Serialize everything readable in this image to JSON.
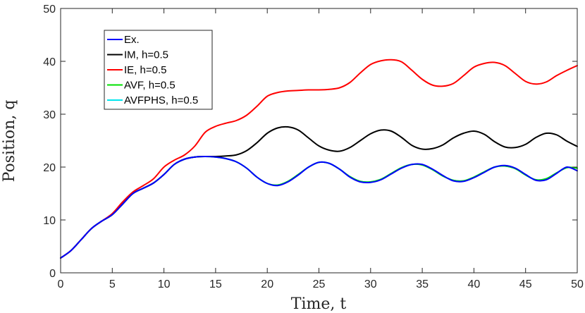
{
  "chart_data": {
    "type": "line",
    "title": "",
    "xlabel": "Time, t",
    "ylabel": "Position, q",
    "xlim": [
      0,
      50
    ],
    "ylim": [
      0,
      50
    ],
    "xticks": [
      "0",
      "5",
      "10",
      "15",
      "20",
      "25",
      "30",
      "35",
      "40",
      "45",
      "50"
    ],
    "yticks": [
      "0",
      "10",
      "20",
      "30",
      "40",
      "50"
    ],
    "grid": false,
    "legend_position": "top-left",
    "series": [
      {
        "name": "Ex.",
        "color": "#0000ff",
        "x": [
          0,
          1,
          2,
          3,
          4,
          5,
          6,
          7,
          8,
          9,
          10,
          11,
          12,
          13,
          14,
          15,
          16,
          17,
          18,
          19,
          20,
          21,
          22,
          23,
          24,
          25,
          26,
          27,
          28,
          29,
          30,
          31,
          32,
          33,
          34,
          35,
          36,
          37,
          38,
          39,
          40,
          41,
          42,
          43,
          44,
          45,
          46,
          47,
          48,
          49,
          50
        ],
        "y": [
          2.8,
          4.2,
          6.3,
          8.4,
          9.8,
          11.0,
          13.0,
          15.0,
          16.0,
          17.0,
          18.6,
          20.5,
          21.5,
          21.9,
          22.0,
          21.9,
          21.6,
          21.0,
          19.8,
          18.1,
          16.9,
          16.5,
          17.2,
          18.5,
          20.0,
          20.9,
          20.7,
          19.6,
          18.1,
          17.2,
          17.1,
          17.6,
          18.7,
          19.8,
          20.5,
          20.5,
          19.6,
          18.4,
          17.4,
          17.3,
          18.0,
          19.0,
          20.0,
          20.3,
          19.8,
          18.6,
          17.5,
          17.6,
          18.8,
          20.0,
          19.3
        ]
      },
      {
        "name": "IM, h=0.5",
        "color": "#000000",
        "x": [
          0,
          1,
          2,
          3,
          4,
          5,
          6,
          7,
          8,
          9,
          10,
          11,
          12,
          13,
          14,
          15,
          16,
          17,
          18,
          19,
          20,
          21,
          22,
          23,
          24,
          25,
          26,
          27,
          28,
          29,
          30,
          31,
          32,
          33,
          34,
          35,
          36,
          37,
          38,
          39,
          40,
          41,
          42,
          43,
          44,
          45,
          46,
          47,
          48,
          49,
          50
        ],
        "y": [
          2.8,
          4.2,
          6.3,
          8.4,
          9.8,
          11.0,
          13.0,
          15.0,
          16.0,
          17.0,
          18.6,
          20.5,
          21.5,
          21.9,
          22.0,
          22.0,
          22.1,
          22.3,
          23.1,
          24.6,
          26.4,
          27.4,
          27.6,
          27.0,
          25.5,
          24.0,
          23.2,
          23.0,
          23.7,
          25.0,
          26.3,
          27.0,
          26.8,
          25.6,
          24.1,
          23.4,
          23.5,
          24.2,
          25.5,
          26.4,
          26.8,
          26.2,
          24.8,
          23.8,
          23.7,
          24.3,
          25.6,
          26.4,
          26.1,
          24.9,
          23.9
        ]
      },
      {
        "name": "IE, h=0.5",
        "color": "#ff0000",
        "x": [
          0,
          1,
          2,
          3,
          4,
          5,
          6,
          7,
          8,
          9,
          10,
          11,
          12,
          13,
          14,
          15,
          16,
          17,
          18,
          19,
          20,
          21,
          22,
          23,
          24,
          25,
          26,
          27,
          28,
          29,
          30,
          31,
          32,
          33,
          34,
          35,
          36,
          37,
          38,
          39,
          40,
          41,
          42,
          43,
          44,
          45,
          46,
          47,
          48,
          49,
          50
        ],
        "y": [
          2.8,
          4.2,
          6.3,
          8.4,
          9.8,
          11.2,
          13.4,
          15.3,
          16.5,
          17.8,
          20.0,
          21.3,
          22.3,
          24.0,
          26.6,
          27.7,
          28.3,
          28.8,
          29.8,
          31.5,
          33.4,
          34.1,
          34.4,
          34.5,
          34.6,
          34.6,
          34.7,
          35.0,
          36.0,
          37.8,
          39.4,
          40.1,
          40.3,
          39.9,
          38.3,
          36.6,
          35.5,
          35.3,
          35.8,
          37.3,
          38.9,
          39.6,
          39.8,
          39.2,
          37.7,
          36.2,
          35.7,
          36.1,
          37.3,
          38.3,
          39.2
        ]
      },
      {
        "name": "AVF, h=0.5",
        "color": "#00e000",
        "x": [
          0,
          1,
          2,
          3,
          4,
          5,
          6,
          7,
          8,
          9,
          10,
          11,
          12,
          13,
          14,
          15,
          16,
          17,
          18,
          19,
          20,
          21,
          22,
          23,
          24,
          25,
          26,
          27,
          28,
          29,
          30,
          31,
          32,
          33,
          34,
          35,
          36,
          37,
          38,
          39,
          40,
          41,
          42,
          43,
          44,
          45,
          46,
          47,
          48,
          49,
          50
        ],
        "y": [
          2.8,
          4.2,
          6.3,
          8.4,
          9.8,
          11.0,
          13.0,
          15.0,
          16.0,
          17.0,
          18.6,
          20.5,
          21.5,
          21.9,
          22.0,
          21.9,
          21.6,
          21.0,
          19.8,
          18.1,
          16.9,
          16.6,
          17.3,
          18.6,
          20.0,
          20.9,
          20.7,
          19.6,
          18.2,
          17.3,
          17.2,
          17.7,
          18.8,
          19.9,
          20.5,
          20.4,
          19.5,
          18.3,
          17.5,
          17.4,
          18.1,
          19.1,
          20.0,
          20.2,
          19.7,
          18.5,
          17.6,
          17.8,
          18.9,
          19.9,
          19.8
        ]
      },
      {
        "name": "AVFPHS, h=0.5",
        "color": "#00e5ee",
        "x": [
          0,
          1,
          2,
          3,
          4,
          5,
          6,
          7,
          8,
          9,
          10,
          11,
          12,
          13,
          14,
          15,
          16,
          17,
          18,
          19,
          20,
          21,
          22,
          23,
          24,
          25,
          26,
          27,
          28,
          29,
          30,
          31,
          32,
          33,
          34,
          35,
          36,
          37,
          38,
          39,
          40,
          41,
          42,
          43,
          44,
          45,
          46,
          47,
          48,
          49,
          50
        ],
        "y": [
          2.8,
          4.2,
          6.3,
          8.4,
          9.8,
          11.0,
          13.0,
          15.0,
          16.0,
          17.0,
          18.6,
          20.5,
          21.5,
          21.9,
          22.0,
          21.9,
          21.6,
          21.0,
          19.8,
          18.1,
          16.9,
          16.6,
          17.3,
          18.6,
          20.0,
          20.9,
          20.7,
          19.6,
          18.2,
          17.3,
          17.2,
          17.7,
          18.8,
          19.9,
          20.5,
          20.4,
          19.5,
          18.3,
          17.5,
          17.4,
          18.1,
          19.1,
          20.0,
          20.2,
          19.7,
          18.5,
          17.6,
          17.8,
          18.9,
          19.9,
          19.8
        ]
      }
    ],
    "draw_order": [
      4,
      3,
      1,
      2,
      0
    ]
  }
}
